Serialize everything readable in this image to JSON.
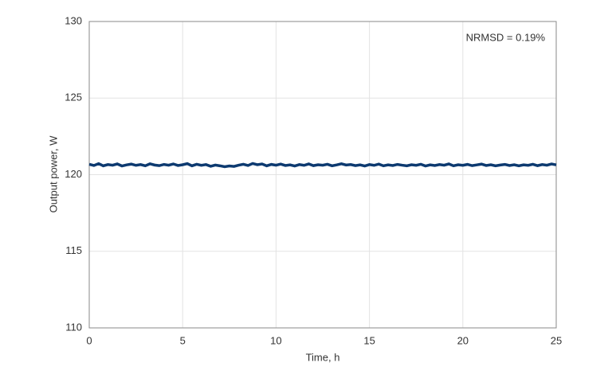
{
  "chart_data": {
    "type": "line",
    "xlabel": "Time, h",
    "ylabel": "Output power, W",
    "annotation": "NRMSD = 0.19%",
    "xlim": [
      0,
      25
    ],
    "xticks": [
      0,
      5,
      10,
      15,
      20,
      25
    ],
    "ylim": [
      110,
      130
    ],
    "yticks": [
      110,
      115,
      120,
      125,
      130
    ],
    "grid": true,
    "x": [
      0,
      0.25,
      0.5,
      0.75,
      1,
      1.25,
      1.5,
      1.75,
      2,
      2.25,
      2.5,
      2.75,
      3,
      3.25,
      3.5,
      3.75,
      4,
      4.25,
      4.5,
      4.75,
      5,
      5.25,
      5.5,
      5.75,
      6,
      6.25,
      6.5,
      6.75,
      7,
      7.25,
      7.5,
      7.75,
      8,
      8.25,
      8.5,
      8.75,
      9,
      9.25,
      9.5,
      9.75,
      10,
      10.25,
      10.5,
      10.75,
      11,
      11.25,
      11.5,
      11.75,
      12,
      12.25,
      12.5,
      12.75,
      13,
      13.25,
      13.5,
      13.75,
      14,
      14.25,
      14.5,
      14.75,
      15,
      15.25,
      15.5,
      15.75,
      16,
      16.25,
      16.5,
      16.75,
      17,
      17.25,
      17.5,
      17.75,
      18,
      18.25,
      18.5,
      18.75,
      19,
      19.25,
      19.5,
      19.75,
      20,
      20.25,
      20.5,
      20.75,
      21,
      21.25,
      21.5,
      21.75,
      22,
      22.25,
      22.5,
      22.75,
      23,
      23.25,
      23.5,
      23.75,
      24,
      24.25,
      24.5,
      24.75,
      25
    ],
    "series": [
      {
        "color": "#0d3a70",
        "values": [
          120.68,
          120.6,
          120.72,
          120.58,
          120.66,
          120.62,
          120.7,
          120.57,
          120.64,
          120.69,
          120.61,
          120.66,
          120.58,
          120.71,
          120.63,
          120.59,
          120.67,
          120.62,
          120.7,
          120.6,
          120.65,
          120.72,
          120.58,
          120.68,
          120.61,
          120.66,
          120.55,
          120.63,
          120.58,
          120.52,
          120.57,
          120.54,
          120.62,
          120.68,
          120.6,
          120.73,
          120.65,
          120.7,
          120.58,
          120.67,
          120.62,
          120.69,
          120.6,
          120.64,
          120.57,
          120.66,
          120.61,
          120.7,
          120.59,
          120.65,
          120.62,
          120.68,
          120.58,
          120.64,
          120.71,
          120.63,
          120.66,
          120.59,
          120.64,
          120.57,
          120.66,
          120.61,
          120.69,
          120.58,
          120.64,
          120.6,
          120.67,
          120.62,
          120.58,
          120.65,
          120.61,
          120.68,
          120.57,
          120.64,
          120.6,
          120.66,
          120.62,
          120.7,
          120.58,
          120.65,
          120.61,
          120.67,
          120.59,
          120.64,
          120.69,
          120.6,
          120.65,
          120.58,
          120.63,
          120.67,
          120.6,
          120.65,
          120.58,
          120.64,
          120.61,
          120.68,
          120.59,
          120.66,
          120.62,
          120.7,
          120.64
        ]
      }
    ]
  }
}
